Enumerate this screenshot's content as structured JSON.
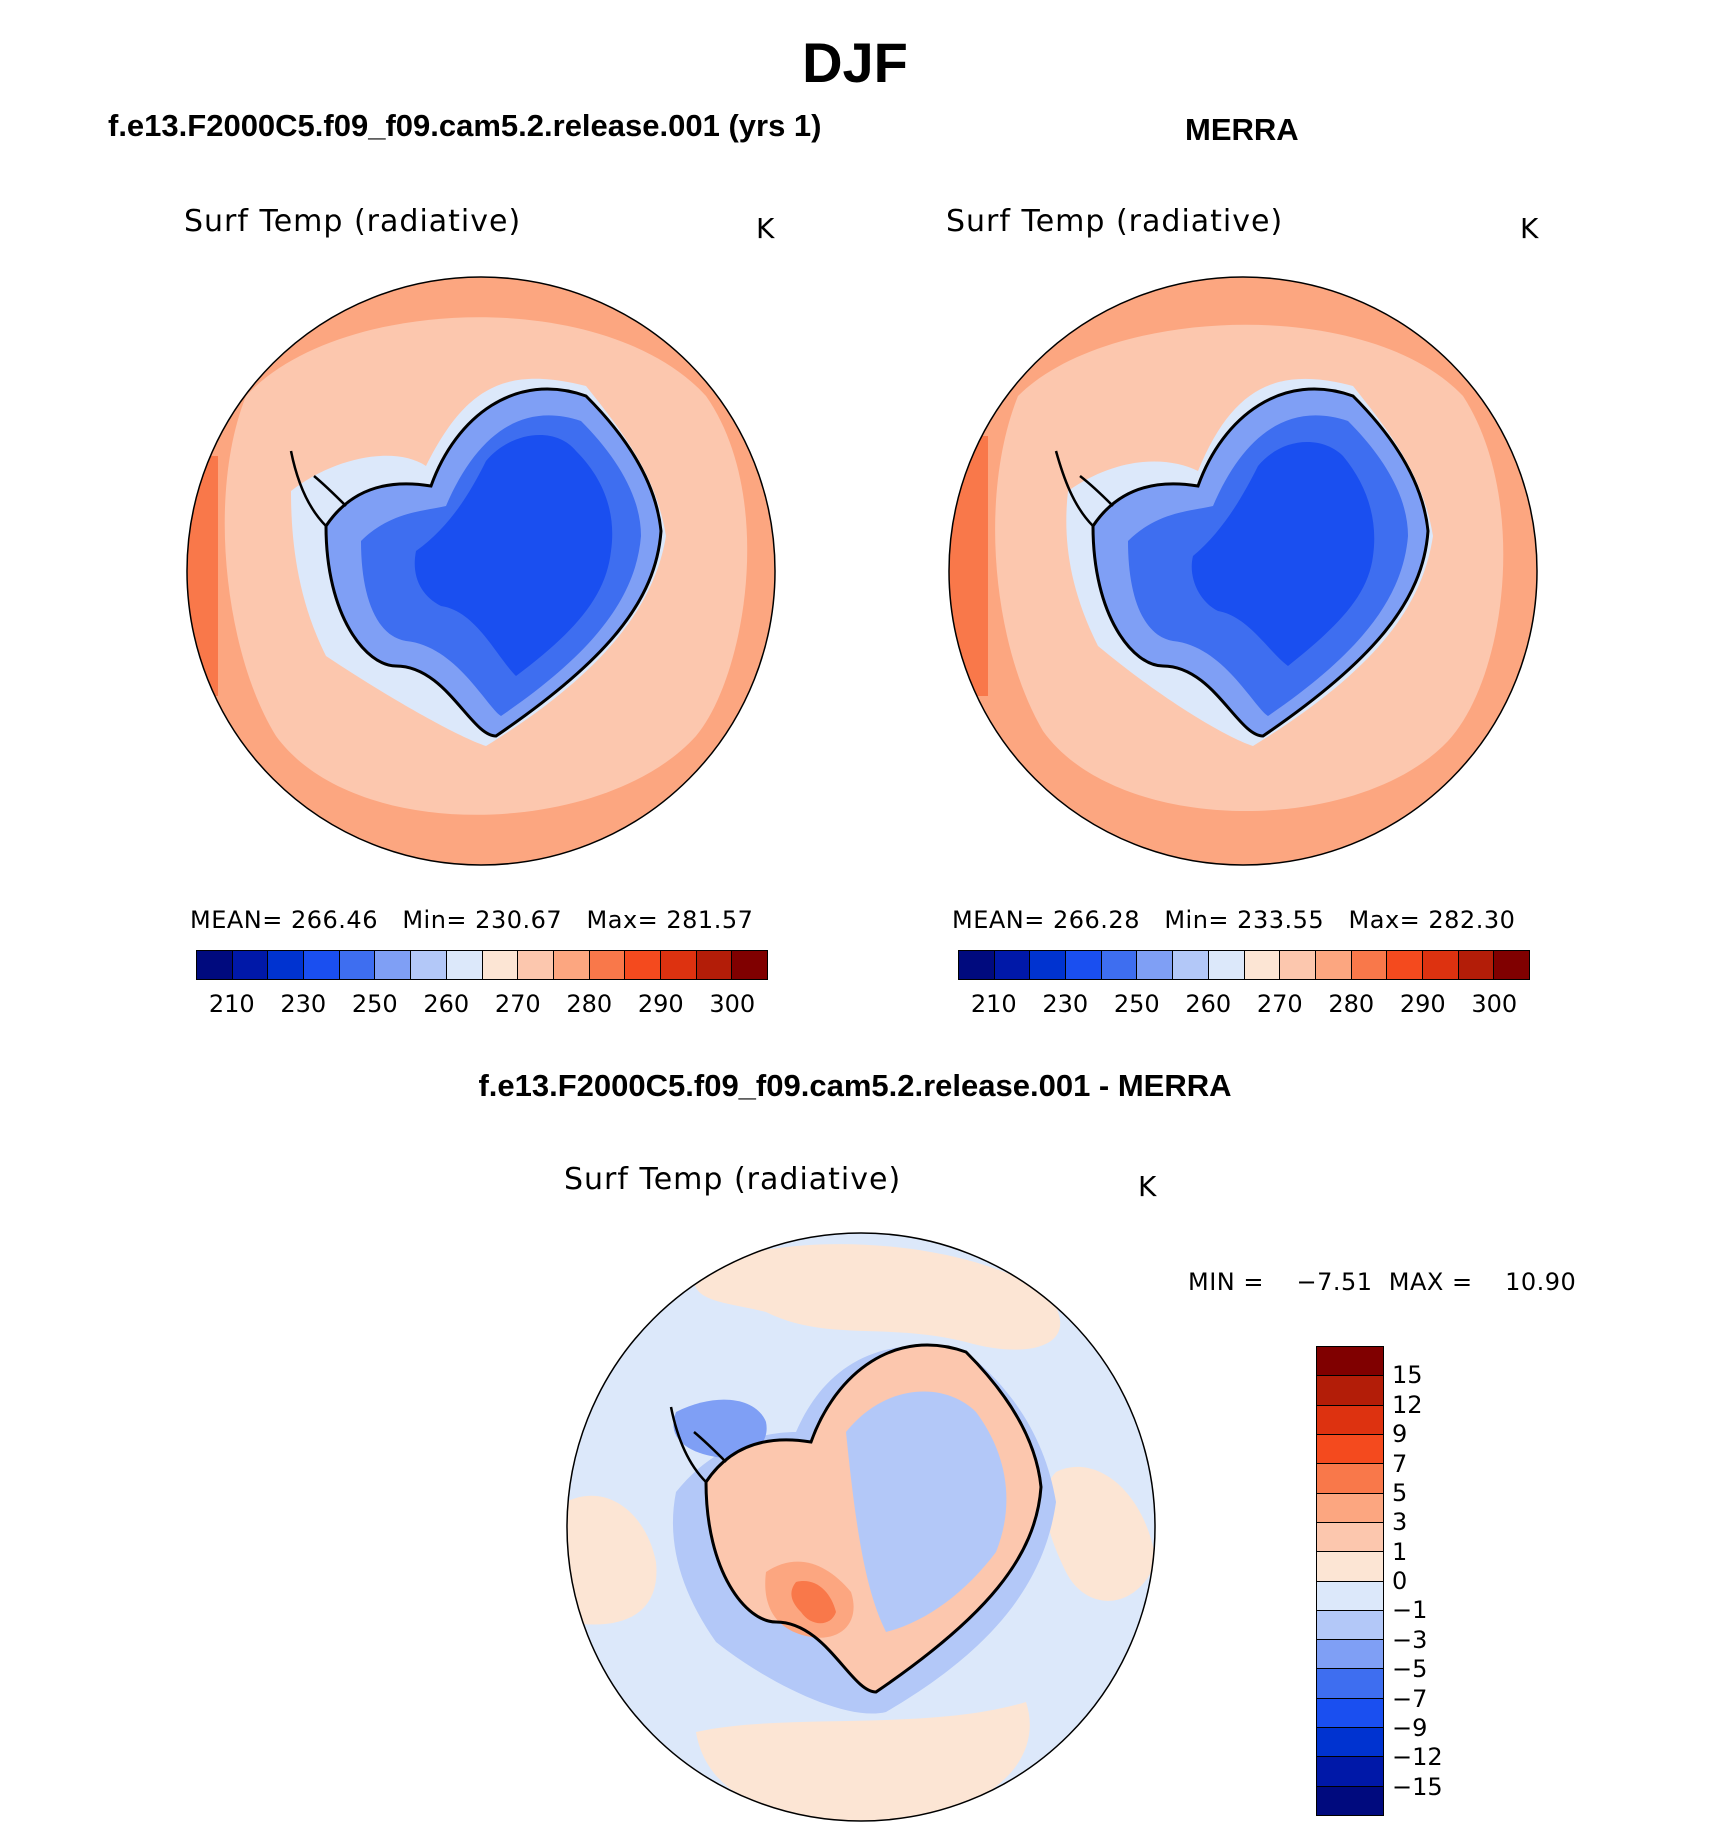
{
  "title": "DJF",
  "panels": [
    {
      "id": "model",
      "header": "f.e13.F2000C5.f09_f09.cam5.2.release.001 (yrs 1)",
      "variable": "Surf Temp (radiative)",
      "units": "K",
      "stats_text": "MEAN= 266.46   Min= 230.67   Max= 281.57",
      "stats": {
        "mean": 266.46,
        "min": 230.67,
        "max": 281.57
      }
    },
    {
      "id": "merra",
      "header": "MERRA",
      "variable": "Surf Temp (radiative)",
      "units": "K",
      "stats_text": "MEAN= 266.28   Min= 233.55   Max= 282.30",
      "stats": {
        "mean": 266.28,
        "min": 233.55,
        "max": 282.3
      }
    }
  ],
  "diff_panel": {
    "header": "f.e13.F2000C5.f09_f09.cam5.2.release.001 - MERRA",
    "variable": "Surf Temp (radiative)",
    "units": "K",
    "stats_text": "MIN =    −7.51  MAX =    10.90",
    "stats": {
      "min": -7.51,
      "max": 10.9
    }
  },
  "abs_colorbar": {
    "colors": [
      "#000a7e",
      "#0018a8",
      "#0033d0",
      "#1a4ff0",
      "#3e6ef0",
      "#7f9ff5",
      "#b3c8f8",
      "#dce8fa",
      "#fce5d4",
      "#fcc7ae",
      "#fca680",
      "#f9784a",
      "#f44a1e",
      "#dd3210",
      "#b31d08",
      "#800000"
    ],
    "tick_labels": [
      "210",
      "230",
      "250",
      "260",
      "270",
      "280",
      "290",
      "300"
    ]
  },
  "diff_colorbar": {
    "colors": [
      "#800000",
      "#b31d08",
      "#dd3210",
      "#f44a1e",
      "#f9784a",
      "#fca680",
      "#fcc7ae",
      "#fce5d4",
      "#dce8fa",
      "#b3c8f8",
      "#7f9ff5",
      "#3e6ef0",
      "#1a4ff0",
      "#0033d0",
      "#0018a8",
      "#000a7e"
    ],
    "tick_labels": [
      "15",
      "12",
      "9",
      "7",
      "5",
      "3",
      "1",
      "0",
      "−1",
      "−3",
      "−5",
      "−7",
      "−9",
      "−12",
      "−15"
    ]
  },
  "map_colors": {
    "ocean_warm": "#fca680",
    "ocean_mid": "#fcc7ae",
    "ocean_edge": "#f9784a",
    "ice_light": "#dce8fa",
    "ice_mid": "#7f9ff5",
    "ice_deep": "#3e6ef0",
    "ice_core": "#1a4ff0",
    "diff_pos_1": "#fce5d4",
    "diff_pos_3": "#fcc7ae",
    "diff_pos_5": "#fca680",
    "diff_pos_7": "#f9784a",
    "diff_neg_1": "#dce8fa",
    "diff_neg_3": "#b3c8f8",
    "diff_neg_5": "#7f9ff5",
    "coast": "#000000"
  }
}
